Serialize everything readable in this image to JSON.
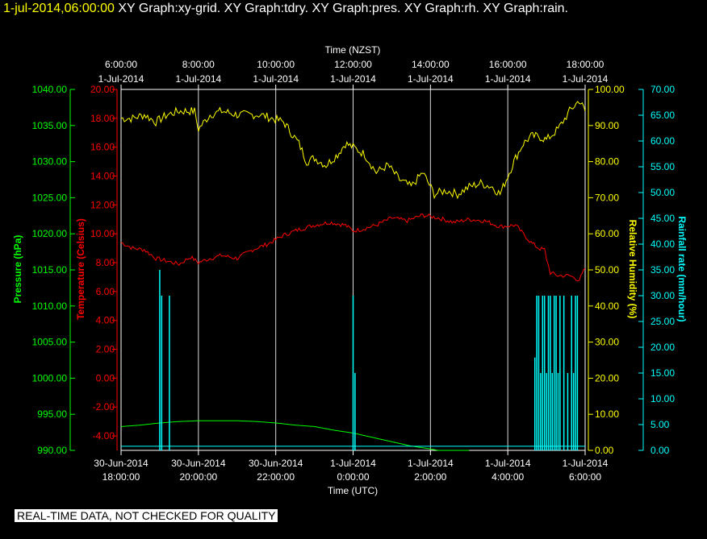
{
  "header": {
    "timestamp": "1-jul-2014,06:00:00",
    "graph_titles": [
      "XY Graph:xy-grid.",
      "XY Graph:tdry.",
      "XY Graph:pres.",
      "XY Graph:rh.",
      "XY Graph:rain."
    ]
  },
  "footer": {
    "note": "REAL-TIME DATA, NOT CHECKED FOR QUALITY"
  },
  "colors": {
    "background": "#000000",
    "pressure": "#00ff00",
    "temperature": "#ff0000",
    "humidity": "#ffff00",
    "rainfall": "#00ffff",
    "grid": "#ffffff"
  },
  "chart_data": {
    "type": "line",
    "top_axis": {
      "label": "Time (NZST)",
      "ticks": [
        {
          "time": "6:00:00",
          "date": "1-Jul-2014"
        },
        {
          "time": "8:00:00",
          "date": "1-Jul-2014"
        },
        {
          "time": "10:00:00",
          "date": "1-Jul-2014"
        },
        {
          "time": "12:00:00",
          "date": "1-Jul-2014"
        },
        {
          "time": "14:00:00",
          "date": "1-Jul-2014"
        },
        {
          "time": "16:00:00",
          "date": "1-Jul-2014"
        },
        {
          "time": "18:00:00",
          "date": "1-Jul-2014"
        }
      ]
    },
    "bottom_axis": {
      "label": "Time (UTC)",
      "xlim": [
        0,
        12
      ],
      "unit": "hours after 30-Jun-2014 18:00:00 UTC",
      "ticks": [
        {
          "date": "30-Jun-2014",
          "time": "18:00:00"
        },
        {
          "date": "30-Jun-2014",
          "time": "20:00:00"
        },
        {
          "date": "30-Jun-2014",
          "time": "22:00:00"
        },
        {
          "date": "1-Jul-2014",
          "time": "0:00:00"
        },
        {
          "date": "1-Jul-2014",
          "time": "2:00:00"
        },
        {
          "date": "1-Jul-2014",
          "time": "4:00:00"
        },
        {
          "date": "1-Jul-2014",
          "time": "6:00:00"
        }
      ]
    },
    "axes": {
      "pressure": {
        "label": "Pressure (hPa)",
        "ylim": [
          990,
          1040
        ],
        "ticks": [
          "990.00",
          "995.00",
          "1000.00",
          "1005.00",
          "1010.00",
          "1015.00",
          "1020.00",
          "1025.00",
          "1030.00",
          "1035.00",
          "1040.00"
        ]
      },
      "temperature": {
        "label": "Temperature (Celsius)",
        "ylim": [
          -5,
          20
        ],
        "ticks": [
          "-4.00",
          "-2.00",
          "0.00",
          "2.00",
          "4.00",
          "6.00",
          "8.00",
          "10.00",
          "12.00",
          "14.00",
          "16.00",
          "18.00",
          "20.00"
        ]
      },
      "humidity": {
        "label": "Relative Humidity (%)",
        "ylim": [
          0,
          100
        ],
        "ticks": [
          "0.00",
          "10.00",
          "20.00",
          "30.00",
          "40.00",
          "50.00",
          "60.00",
          "70.00",
          "80.00",
          "90.00",
          "100.00"
        ]
      },
      "rainfall": {
        "label": "Rainfall rate (mm/hour)",
        "ylim": [
          0,
          70
        ],
        "ticks": [
          "0.00",
          "5.00",
          "10.00",
          "15.00",
          "20.00",
          "25.00",
          "30.00",
          "35.00",
          "40.00",
          "45.00",
          "50.00",
          "55.00",
          "60.00",
          "65.00",
          "70.00"
        ]
      }
    },
    "series": [
      {
        "name": "Relative Humidity (%)",
        "axis": "humidity",
        "x": [
          0,
          0.3,
          0.6,
          0.9,
          1.2,
          1.5,
          1.7,
          1.9,
          2.0,
          2.3,
          2.6,
          3.0,
          3.3,
          3.6,
          3.9,
          4.2,
          4.4,
          4.6,
          4.8,
          5.0,
          5.3,
          5.6,
          5.8,
          6.0,
          6.3,
          6.6,
          6.9,
          7.2,
          7.5,
          7.8,
          8.1,
          8.4,
          8.7,
          9.0,
          9.3,
          9.6,
          9.8,
          10.0,
          10.2,
          10.4,
          10.6,
          10.8,
          11.0,
          11.3,
          11.6,
          11.85,
          12.0
        ],
        "values": [
          92,
          92,
          93,
          91,
          93,
          94,
          94,
          94,
          89,
          93,
          94,
          93,
          93,
          93,
          92,
          91,
          88,
          85,
          80,
          81,
          79,
          82,
          85,
          84,
          82,
          77,
          79,
          75,
          73,
          77,
          71,
          72,
          71,
          73,
          74,
          73,
          71,
          76,
          81,
          85,
          87,
          87,
          86,
          89,
          94,
          97,
          94
        ]
      },
      {
        "name": "Temperature (Celsius)",
        "axis": "temperature",
        "x": [
          0,
          0.3,
          0.6,
          0.9,
          1.2,
          1.5,
          1.8,
          2.0,
          2.3,
          2.6,
          3.0,
          3.4,
          3.8,
          4.2,
          4.6,
          5.0,
          5.4,
          5.8,
          6.0,
          6.2,
          6.6,
          7.0,
          7.4,
          7.8,
          8.2,
          8.6,
          9.0,
          9.4,
          9.8,
          10.2,
          10.6,
          10.8,
          10.95,
          11.0,
          11.1,
          11.3,
          11.6,
          11.85,
          12.0
        ],
        "values": [
          9.4,
          9.0,
          8.9,
          8.3,
          8.1,
          7.9,
          8.4,
          8.0,
          8.3,
          8.5,
          8.3,
          8.9,
          9.3,
          9.9,
          10.3,
          10.6,
          10.8,
          10.6,
          10.2,
          10.3,
          10.6,
          11.1,
          10.9,
          11.3,
          11.1,
          10.8,
          11.0,
          10.9,
          10.5,
          10.6,
          9.4,
          9.0,
          8.9,
          8.3,
          7.3,
          7.1,
          7.1,
          6.8,
          7.6
        ]
      },
      {
        "name": "Pressure (hPa)",
        "axis": "pressure",
        "x": [
          0,
          0.5,
          1.0,
          1.5,
          2.0,
          2.5,
          3.0,
          3.5,
          4.0,
          4.5,
          5.0,
          5.5,
          6.0,
          6.5,
          7.0,
          7.5,
          8.0,
          8.5,
          9.0
        ],
        "values": [
          993.3,
          993.5,
          993.8,
          994.0,
          994.1,
          994.1,
          994.1,
          994.0,
          993.8,
          993.5,
          993.3,
          992.8,
          992.4,
          991.8,
          991.2,
          990.6,
          990.2,
          989.7,
          989.0
        ]
      },
      {
        "name": "Rainfall rate (mm/hour)",
        "axis": "rainfall",
        "type": "bar",
        "x": [
          1.0,
          1.05,
          1.25,
          6.0,
          6.05,
          10.7,
          10.75,
          10.8,
          10.85,
          10.9,
          10.95,
          11.0,
          11.05,
          11.1,
          11.15,
          11.2,
          11.25,
          11.3,
          11.35,
          11.45,
          11.55,
          11.65,
          11.7,
          11.75,
          11.8
        ],
        "values": [
          35,
          30,
          30,
          30,
          15,
          18,
          30,
          30,
          15,
          30,
          30,
          15,
          30,
          30,
          15,
          30,
          30,
          15,
          30,
          30,
          15,
          30,
          15,
          30,
          30
        ]
      },
      {
        "axis": "rainfall",
        "x": [
          0,
          12
        ],
        "values": [
          0.8,
          0.8
        ]
      }
    ],
    "grid": true
  }
}
